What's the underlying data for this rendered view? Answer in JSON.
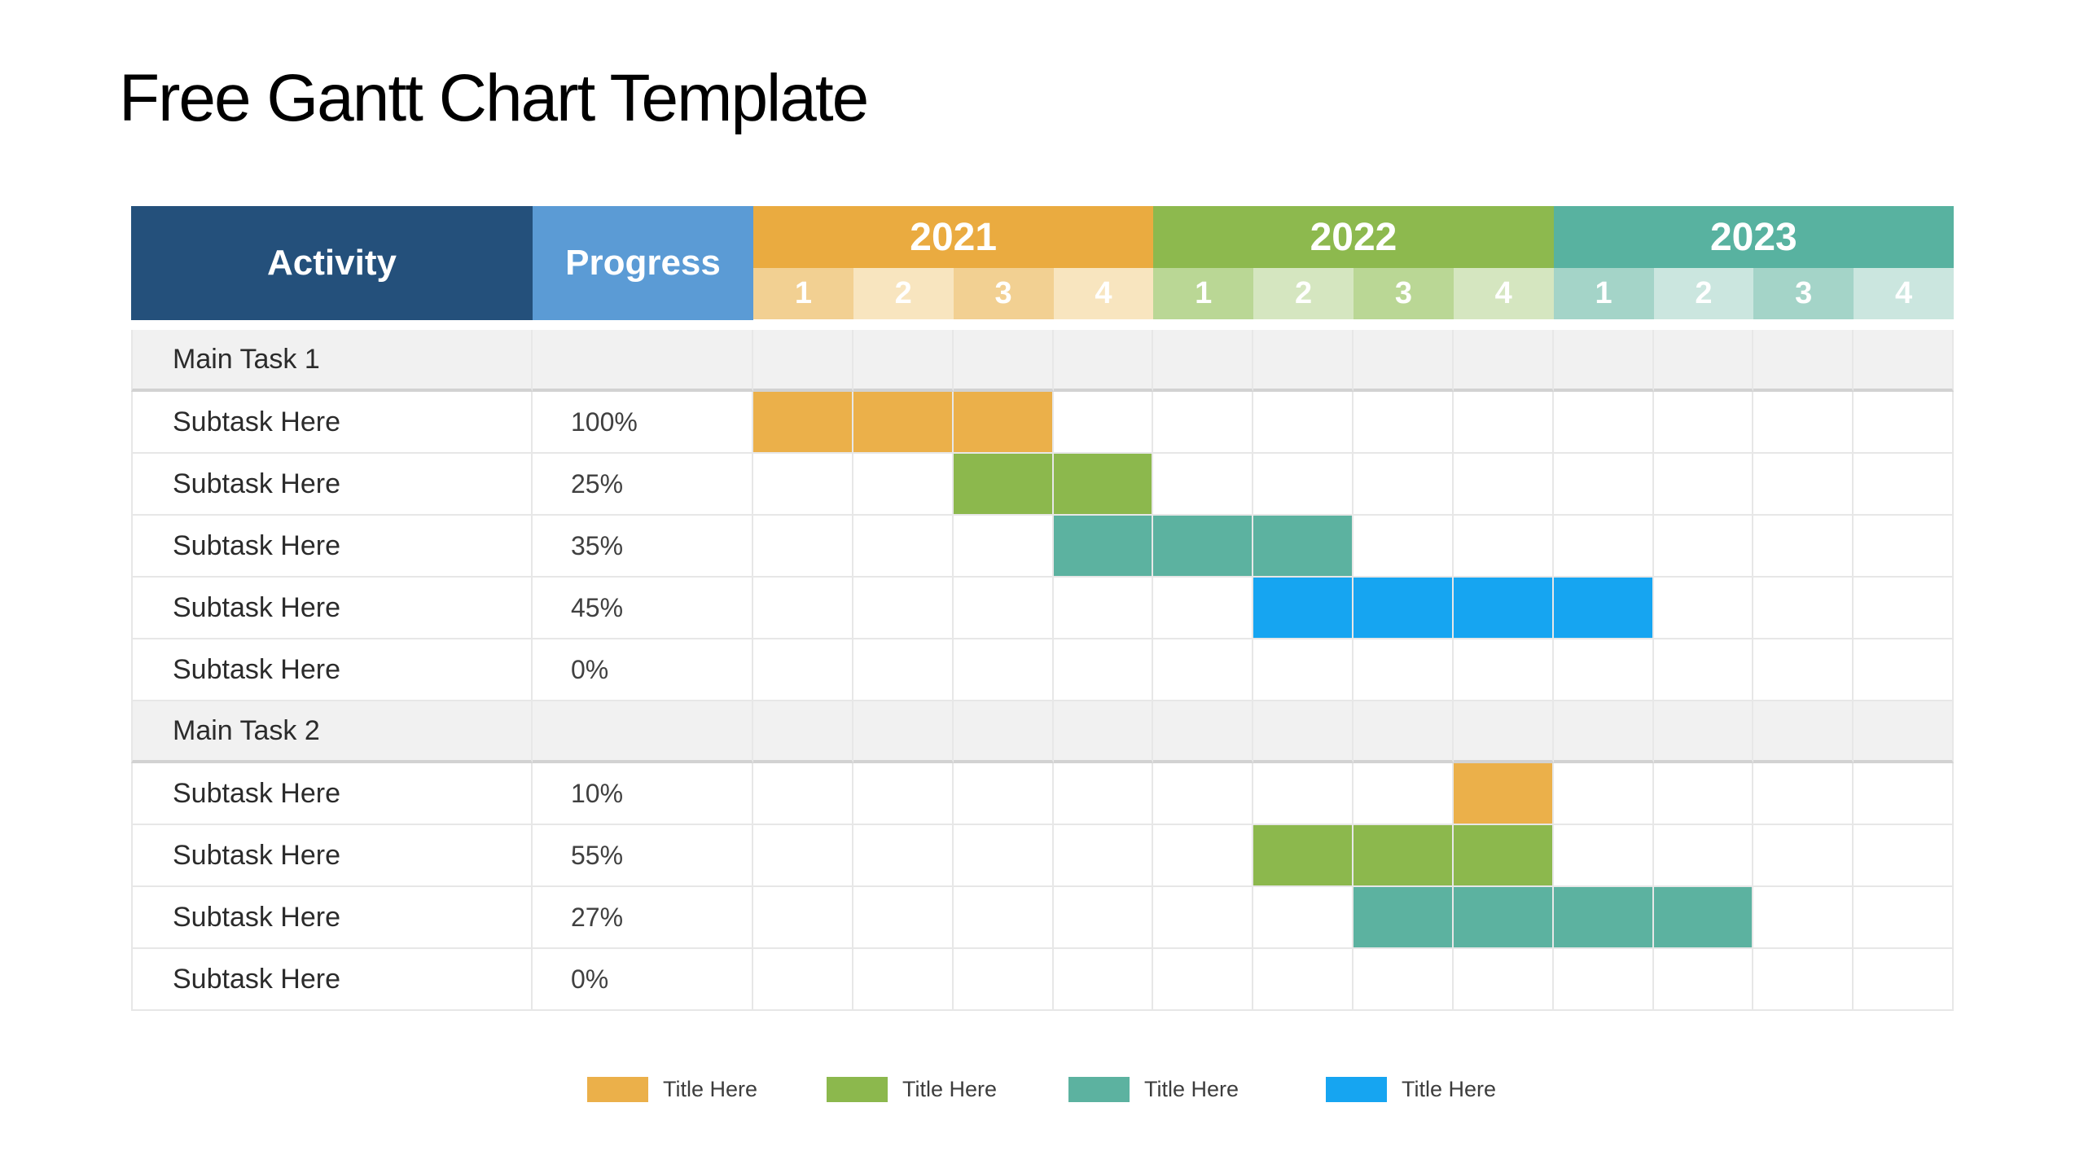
{
  "title": "Free Gantt Chart Template",
  "table": {
    "activity_header": "Activity",
    "progress_header": "Progress",
    "years": [
      "2021",
      "2022",
      "2023"
    ],
    "quarter_labels": [
      "1",
      "2",
      "3",
      "4"
    ]
  },
  "legend": {
    "items": [
      {
        "label": "Title Here",
        "color_name": "orange"
      },
      {
        "label": "Title Here",
        "color_name": "green"
      },
      {
        "label": "Title Here",
        "color_name": "teal"
      },
      {
        "label": "Title Here",
        "color_name": "blue"
      }
    ]
  },
  "colors": {
    "header_activity_bg": "#24507B",
    "header_progress_bg": "#5B9BD5",
    "year_2021": "#EAAB40",
    "year_2022": "#8DB94E",
    "year_2023": "#58B2A0",
    "q_2021": [
      "#F2D092",
      "#F8E5BF"
    ],
    "q_2022": [
      "#BAD795",
      "#D5E6C0"
    ],
    "q_2023": [
      "#A4D4C8",
      "#CBE6DF"
    ],
    "bar_orange": "#EBB04A",
    "bar_green": "#8CB84D",
    "bar_teal": "#5CB2A0",
    "bar_blue": "#16A5F1",
    "main_row_bg": "#F1F1F1"
  },
  "chart_data": {
    "type": "table",
    "title": "Free Gantt Chart Template",
    "columns": [
      "Activity",
      "Progress",
      "2021 Q1",
      "2021 Q2",
      "2021 Q3",
      "2021 Q4",
      "2022 Q1",
      "2022 Q2",
      "2022 Q3",
      "2022 Q4",
      "2023 Q1",
      "2023 Q2",
      "2023 Q3",
      "2023 Q4"
    ],
    "legend_labels": [
      "Title Here",
      "Title Here",
      "Title Here",
      "Title Here"
    ],
    "legend_position": "bottom",
    "rows": [
      {
        "activity": "Main Task 1",
        "progress": null,
        "bar": null
      },
      {
        "activity": "Subtask Here",
        "progress": "100%",
        "bar": {
          "from": "2021 Q1",
          "to": "2021 Q3",
          "color_name": "orange"
        }
      },
      {
        "activity": "Subtask Here",
        "progress": "25%",
        "bar": {
          "from": "2021 Q3",
          "to": "2021 Q4",
          "color_name": "green"
        }
      },
      {
        "activity": "Subtask Here",
        "progress": "35%",
        "bar": {
          "from": "2021 Q4",
          "to": "2022 Q2",
          "color_name": "teal"
        }
      },
      {
        "activity": "Subtask Here",
        "progress": "45%",
        "bar": {
          "from": "2022 Q2",
          "to": "2023 Q1",
          "color_name": "blue"
        }
      },
      {
        "activity": "Subtask Here",
        "progress": "0%",
        "bar": null
      },
      {
        "activity": "Main Task 2",
        "progress": null,
        "bar": null
      },
      {
        "activity": "Subtask Here",
        "progress": "10%",
        "bar": {
          "from": "2022 Q4",
          "to": "2022 Q4",
          "color_name": "orange"
        }
      },
      {
        "activity": "Subtask Here",
        "progress": "55%",
        "bar": {
          "from": "2022 Q2",
          "to": "2022 Q4",
          "color_name": "green"
        }
      },
      {
        "activity": "Subtask Here",
        "progress": "27%",
        "bar": {
          "from": "2022 Q3",
          "to": "2023 Q2",
          "color_name": "teal"
        }
      },
      {
        "activity": "Subtask Here",
        "progress": "0%",
        "bar": null
      }
    ]
  }
}
